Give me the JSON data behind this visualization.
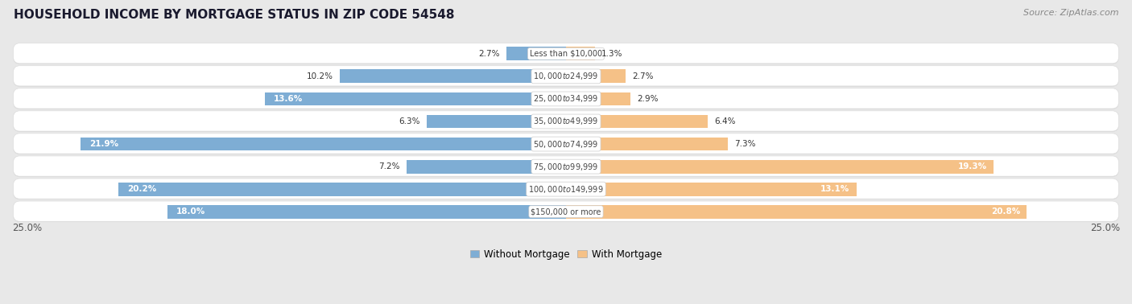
{
  "title": "HOUSEHOLD INCOME BY MORTGAGE STATUS IN ZIP CODE 54548",
  "source": "Source: ZipAtlas.com",
  "categories": [
    "Less than $10,000",
    "$10,000 to $24,999",
    "$25,000 to $34,999",
    "$35,000 to $49,999",
    "$50,000 to $74,999",
    "$75,000 to $99,999",
    "$100,000 to $149,999",
    "$150,000 or more"
  ],
  "without_mortgage": [
    2.7,
    10.2,
    13.6,
    6.3,
    21.9,
    7.2,
    20.2,
    18.0
  ],
  "with_mortgage": [
    1.3,
    2.7,
    2.9,
    6.4,
    7.3,
    19.3,
    13.1,
    20.8
  ],
  "color_without": "#7eadd4",
  "color_with": "#f5c187",
  "bg_color": "#e8e8e8",
  "row_bg_light": "#f5f5f5",
  "row_bg_dark": "#ececec",
  "axis_limit": 25.0,
  "legend_labels": [
    "Without Mortgage",
    "With Mortgage"
  ],
  "bottom_axis_label_left": "25.0%",
  "bottom_axis_label_right": "25.0%",
  "title_fontsize": 11,
  "source_fontsize": 8,
  "label_fontsize": 7.5,
  "cat_fontsize": 7.0
}
